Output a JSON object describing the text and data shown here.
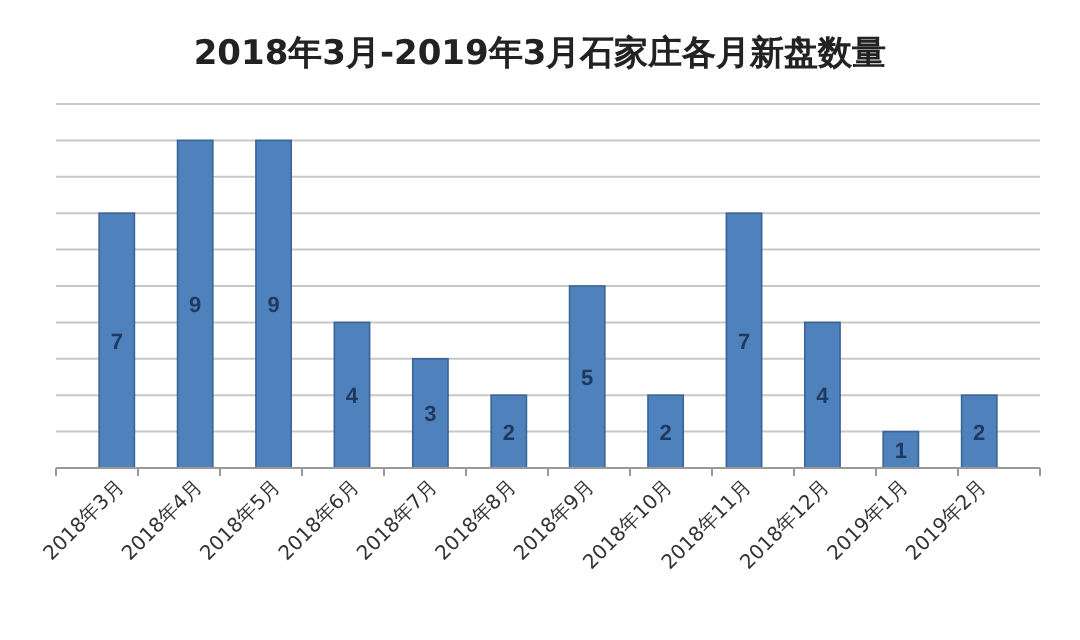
{
  "chart_data": {
    "type": "bar",
    "title": "2018年3月-2019年3月石家庄各月新盘数量",
    "categories": [
      "2018年3月",
      "2018年4月",
      "2018年5月",
      "2018年6月",
      "2018年7月",
      "2018年8月",
      "2018年9月",
      "2018年10月",
      "2018年11月",
      "2018年12月",
      "2019年1月",
      "2019年2月"
    ],
    "values": [
      7,
      9,
      9,
      4,
      3,
      2,
      5,
      2,
      7,
      4,
      1,
      2
    ],
    "color": "#4f81bd",
    "data_labels": true,
    "ylim": [
      0,
      10
    ],
    "yticks": [
      {
        "value": 0,
        "label": null
      },
      {
        "value": 1,
        "label": null
      },
      {
        "value": 2,
        "label": null
      },
      {
        "value": 3,
        "label": null
      },
      {
        "value": 4,
        "label": null
      },
      {
        "value": 5,
        "label": null
      },
      {
        "value": 6,
        "label": null
      },
      {
        "value": 7,
        "label": null
      },
      {
        "value": 8,
        "label": null
      },
      {
        "value": 9,
        "label": null
      },
      {
        "value": 10,
        "label": null
      }
    ],
    "grid": "y",
    "tick_labels": "x"
  }
}
